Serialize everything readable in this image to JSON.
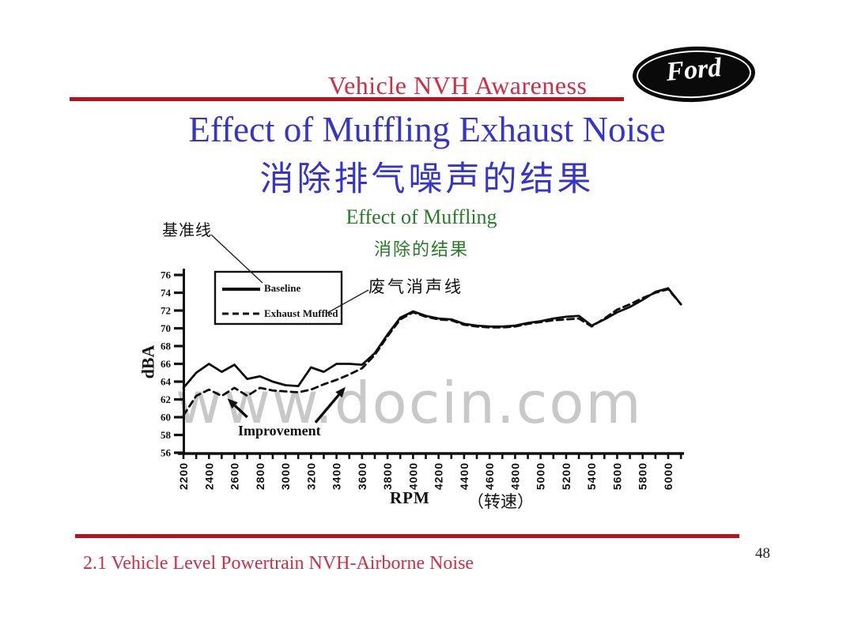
{
  "header": {
    "course_title": "Vehicle NVH Awareness",
    "logo_text": "Ford"
  },
  "title": {
    "line1_en": "Effect of Muffling Exhaust Noise",
    "line2_zh": "消除排气噪声的结果"
  },
  "subtitle": {
    "line1_en": "Effect of Muffling",
    "line2_zh": "消除的结果"
  },
  "annotations": {
    "baseline_label_zh": "基准线",
    "muffled_label_zh": "废气消声线",
    "improvement_label": "Improvement"
  },
  "watermark": "www.docin.com",
  "footer": {
    "section_title": "2.1 Vehicle Level Powertrain NVH-Airborne Noise",
    "page_number": "48"
  },
  "colors": {
    "header_red": "#d02e44",
    "rule_red": "#b5121c",
    "title_blue": "#3534cb",
    "subtitle_green": "#267d26",
    "curve_black": "#0d0d0d",
    "watermark_gray": "#c8c8c8"
  },
  "chart_data": {
    "type": "line",
    "xlabel": "RPM",
    "xlabel_zh": "（转速）",
    "ylabel": "dBA",
    "xlim": [
      2200,
      6150
    ],
    "ylim": [
      56,
      76
    ],
    "grid": false,
    "legend_position": "top-left-inside",
    "y_ticks": [
      76,
      74,
      72,
      70,
      68,
      66,
      64,
      62,
      60,
      58,
      56
    ],
    "x_ticks_labeled": [
      2200,
      2400,
      2600,
      2800,
      3000,
      3200,
      3400,
      3600,
      3800,
      4000,
      4200,
      4400,
      4600,
      4800,
      5000,
      5200,
      5400,
      5600,
      5800,
      6000
    ],
    "x_tick_minor_step": 100,
    "legend": [
      {
        "name": "Baseline",
        "style": "solid"
      },
      {
        "name": "Exhaust Muffled",
        "style": "dashed"
      }
    ],
    "x": [
      2200,
      2300,
      2400,
      2500,
      2600,
      2700,
      2800,
      2900,
      3000,
      3100,
      3200,
      3300,
      3400,
      3500,
      3600,
      3700,
      3800,
      3900,
      4000,
      4100,
      4200,
      4300,
      4400,
      4500,
      4600,
      4700,
      4800,
      4900,
      5000,
      5100,
      5200,
      5300,
      5400,
      5500,
      5600,
      5700,
      5800,
      5900,
      6000,
      6100
    ],
    "series": [
      {
        "name": "Baseline",
        "style": "solid",
        "values": [
          63.3,
          65.0,
          66.0,
          65.1,
          65.9,
          64.3,
          64.6,
          64.0,
          63.6,
          63.5,
          65.6,
          65.1,
          66.0,
          66.0,
          65.9,
          67.2,
          69.3,
          71.2,
          71.9,
          71.4,
          71.1,
          71.0,
          70.5,
          70.3,
          70.2,
          70.2,
          70.3,
          70.6,
          70.8,
          71.1,
          71.3,
          71.4,
          70.3,
          71.0,
          71.8,
          72.4,
          73.2,
          74.1,
          74.5,
          72.7
        ]
      },
      {
        "name": "Exhaust Muffled",
        "style": "dashed",
        "values": [
          60.2,
          62.4,
          63.1,
          62.4,
          63.3,
          62.4,
          63.3,
          63.0,
          62.9,
          62.8,
          63.1,
          63.7,
          64.2,
          64.8,
          65.5,
          67.0,
          69.1,
          71.0,
          71.8,
          71.3,
          71.0,
          70.9,
          70.4,
          70.2,
          70.1,
          70.1,
          70.2,
          70.5,
          70.7,
          70.9,
          71.0,
          71.1,
          70.2,
          71.1,
          72.1,
          72.7,
          73.4,
          74.0,
          74.4,
          72.7
        ]
      }
    ],
    "improvement_arrows": [
      {
        "from_rpm": 2700,
        "from_dba": 60.0,
        "to_rpm": 2545,
        "to_dba": 62.1
      },
      {
        "from_rpm": 3235,
        "from_dba": 59.4,
        "to_rpm": 3470,
        "to_dba": 63.4
      }
    ]
  }
}
